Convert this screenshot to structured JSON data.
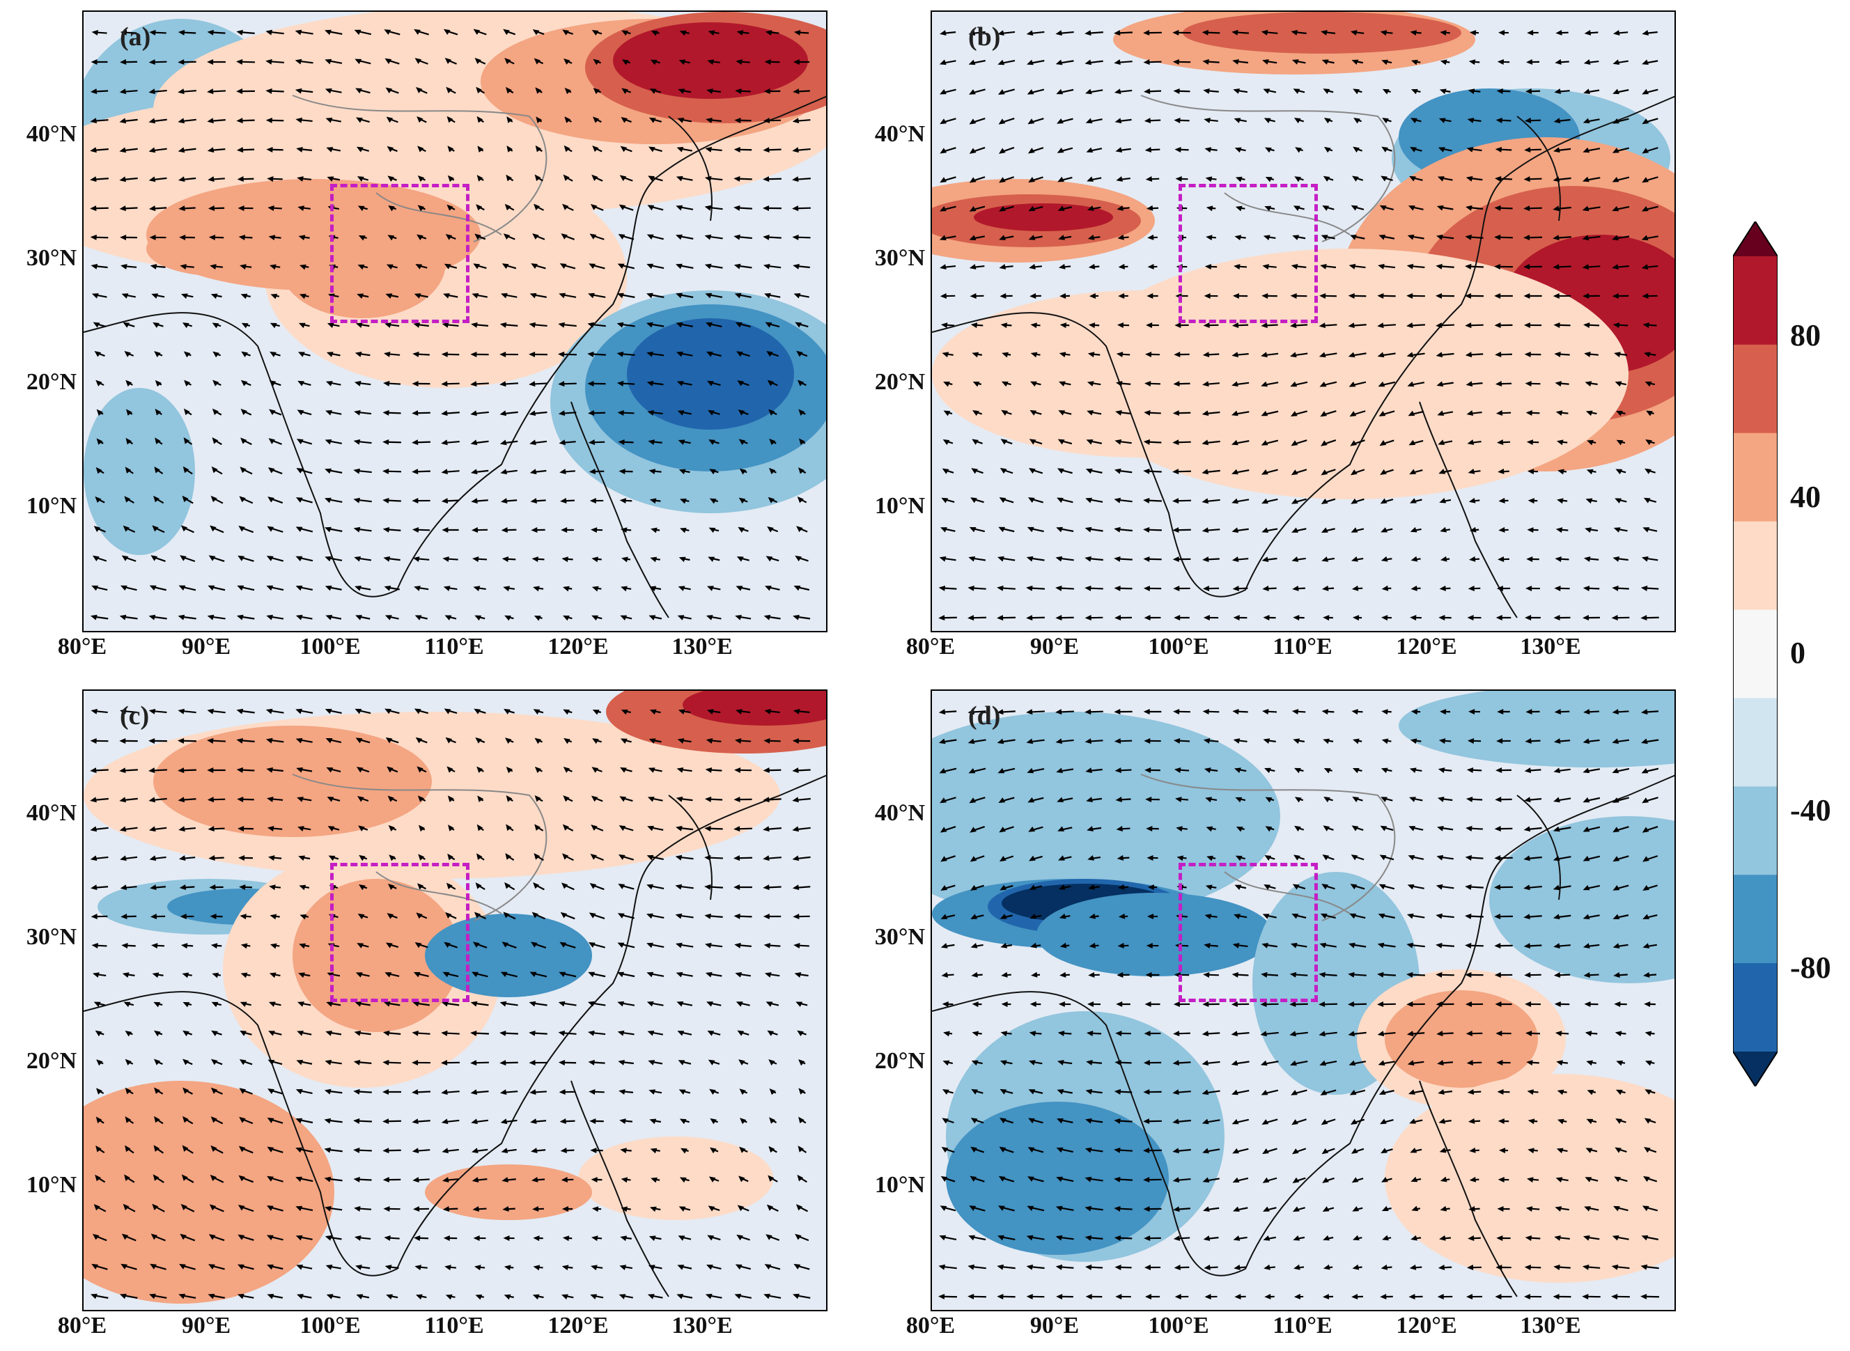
{
  "figure": {
    "panels": [
      {
        "id": "a",
        "label": "(a)"
      },
      {
        "id": "b",
        "label": "(b)"
      },
      {
        "id": "c",
        "label": "(c)"
      },
      {
        "id": "d",
        "label": "(d)"
      }
    ],
    "lat_ticks": [
      "40°N",
      "30°N",
      "20°N",
      "10°N"
    ],
    "lon_ticks": [
      "80°E",
      "90°E",
      "100°E",
      "110°E",
      "120°E",
      "130°E"
    ],
    "colorbar": {
      "tick_labels": [
        "80",
        "40",
        "0",
        "-40",
        "-80"
      ],
      "colors": [
        "#67001f",
        "#b2182b",
        "#d6604d",
        "#f4a582",
        "#fddbc7",
        "#f7f7f7",
        "#d1e5f0",
        "#92c5de",
        "#4393c3",
        "#2166ac",
        "#053061"
      ],
      "levels": [
        100,
        80,
        60,
        40,
        20,
        0,
        -20,
        -40,
        -60,
        -80,
        -100
      ]
    },
    "region_box": {
      "lon_min": 100,
      "lon_max": 110,
      "lat_min": 25,
      "lat_max": 35,
      "color": "#c51ec5"
    }
  }
}
